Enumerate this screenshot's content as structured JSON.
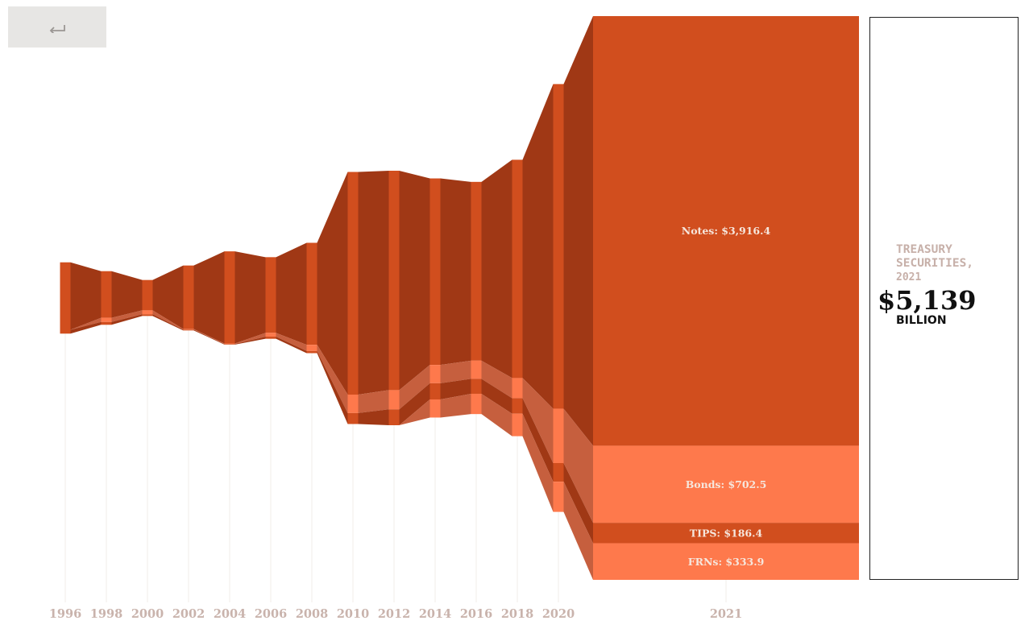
{
  "back_button": {
    "icon": "back-arrow-icon"
  },
  "summary": {
    "title": "TREASURY SECURITIES,",
    "year": "2021",
    "total": "$5,139",
    "unit": "BILLION"
  },
  "colors": {
    "notes": "#d14e1e",
    "notes_flow": "#a03815",
    "bonds": "#fe794c",
    "bonds_flow": "#c65f3e",
    "tips": "#d14e1e",
    "tips_flow": "#a03815",
    "frns": "#fe794c",
    "frns_flow": "#c65f3e",
    "tick": "#c9b3ac"
  },
  "chart_data": {
    "type": "area",
    "chart_kind": "stacked flow (sankey-like) of Treasury securities outstanding",
    "unit": "billions of dollars",
    "x": [
      "1996",
      "1998",
      "2000",
      "2002",
      "2004",
      "2006",
      "2008",
      "2010",
      "2012",
      "2014",
      "2016",
      "2018",
      "2020",
      "2021"
    ],
    "series": [
      {
        "name": "Notes",
        "key": "notes",
        "values": [
          615,
          425,
          277,
          580,
          840,
          690,
          930,
          2030,
          2000,
          1700,
          1630,
          1990,
          2960,
          3916.4
        ]
      },
      {
        "name": "Bonds",
        "key": "bonds",
        "values": [
          0,
          38,
          36,
          5,
          5,
          34,
          56,
          168,
          175,
          167,
          165,
          183,
          495,
          702.5
        ]
      },
      {
        "name": "TIPS",
        "key": "tips",
        "values": [
          35,
          26,
          15,
          7,
          5,
          20,
          20,
          100,
          145,
          148,
          137,
          142,
          170,
          186.4
        ]
      },
      {
        "name": "FRNs",
        "key": "frns",
        "values": [
          0,
          0,
          0,
          0,
          0,
          0,
          0,
          0,
          0,
          165,
          185,
          205,
          275,
          333.9
        ]
      }
    ],
    "labels": [
      {
        "key": "notes",
        "text": "Notes: $3,916.4"
      },
      {
        "key": "bonds",
        "text": "Bonds: $702.5"
      },
      {
        "key": "tips",
        "text": "TIPS: $186.4"
      },
      {
        "key": "frns",
        "text": "FRNs: $333.9"
      }
    ]
  }
}
